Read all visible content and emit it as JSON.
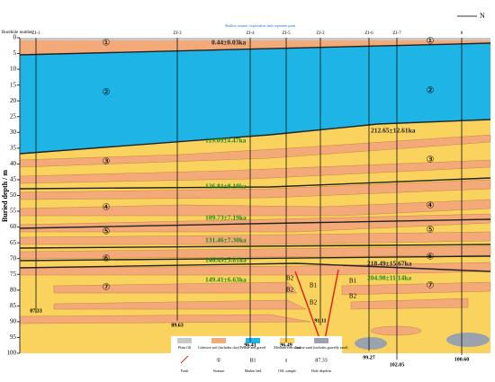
{
  "header": {
    "borehole_label": "Borehole number",
    "north": "N",
    "seismic_note": "Shallow seismic exploration fault represent point"
  },
  "axis": {
    "label": "Buried depth / m",
    "range": [
      0,
      100
    ],
    "ticks": [
      0,
      5,
      10,
      15,
      20,
      25,
      30,
      35,
      40,
      45,
      50,
      55,
      60,
      65,
      70,
      75,
      80,
      85,
      90,
      95,
      100
    ]
  },
  "boreholes": [
    {
      "name": "ZJ-1",
      "depth": "87.33"
    },
    {
      "name": "ZJ-3",
      "depth": "89.63"
    },
    {
      "name": "ZJ-4",
      "depth": "96.41"
    },
    {
      "name": "ZJ-5",
      "depth": "96.49"
    },
    {
      "name": "ZJ-2",
      "depth": "91.11"
    },
    {
      "name": "ZJ-6",
      "depth": "99.27"
    },
    {
      "name": "ZJ-7",
      "depth": "102.05"
    },
    {
      "name": "8",
      "depth": "100.60"
    }
  ],
  "layers": [
    "①",
    "②",
    "③",
    "④",
    "⑤",
    "⑥",
    "⑦"
  ],
  "ages": [
    "0.44±0.03ka",
    "119.09±4.47ka",
    "212.65±12.61ka",
    "126.81±8.10ka",
    "109.73±7.19ka",
    "131.46±7.30ka",
    "146.49±5.81ka",
    "218.49±15.67ka",
    "149.41±6.63ka",
    "204.98±11.14ka"
  ],
  "marker_beds": [
    "B2",
    "B1",
    "B2",
    "B2",
    "B1",
    "B2"
  ],
  "legend": [
    {
      "label": "Plain fill"
    },
    {
      "label": "Cohesive soil (includes clay)"
    },
    {
      "label": "Pebble and gravel"
    },
    {
      "label": "Medium-fine sand"
    },
    {
      "label": "Coarse sand (includes gravelly sand)"
    },
    {
      "label": "Fault"
    },
    {
      "label": "Stratum",
      "symbol": "①"
    },
    {
      "label": "Marker bed",
      "symbol": "B1"
    },
    {
      "label": "OSL sample"
    },
    {
      "label": "Hole depth/m",
      "symbol": "87.33"
    }
  ]
}
